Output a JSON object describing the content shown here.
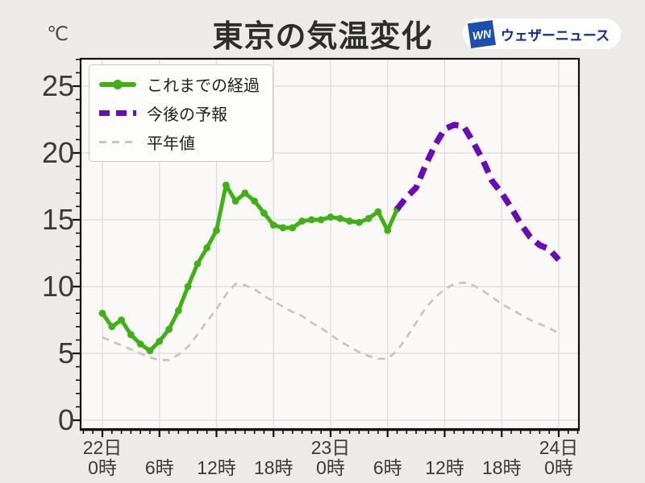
{
  "header": {
    "title": "東京の気温変化",
    "unit_label": "℃"
  },
  "logo": {
    "mark": "WN",
    "text": "ウェザーニュース"
  },
  "colors": {
    "observed_green": "#3eb114",
    "forecast_purple": "#6a0ab8",
    "normal_gray": "#c6c6c6",
    "background": "#edebe8",
    "plot_background": "#faf9f7",
    "grid": "#dcdcdc",
    "axis": "#111111",
    "tick_text": "#3a3a3a",
    "logo_square_blue": "#1d4fb0",
    "logo_text_blue": "#0c2a99"
  },
  "chart_data": {
    "type": "line",
    "title": "東京の気温変化",
    "ylabel": "℃",
    "grid": true,
    "legend_position": "top-left",
    "x_axis": {
      "unit": "hour",
      "range_hours": [
        0,
        48
      ],
      "major_tick_every_hours": 6,
      "minor_tick_every_hours": 1,
      "tick_labels": [
        {
          "hour": 0,
          "day": "22日",
          "time": "0時"
        },
        {
          "hour": 6,
          "time": "6時"
        },
        {
          "hour": 12,
          "time": "12時"
        },
        {
          "hour": 18,
          "time": "18時"
        },
        {
          "hour": 24,
          "day": "23日",
          "time": "0時"
        },
        {
          "hour": 30,
          "time": "6時"
        },
        {
          "hour": 36,
          "time": "12時"
        },
        {
          "hour": 42,
          "time": "18時"
        },
        {
          "hour": 48,
          "day": "24日",
          "time": "0時"
        }
      ]
    },
    "y_axis": {
      "unit": "℃",
      "ticks": [
        0,
        5,
        10,
        15,
        20,
        25
      ],
      "minor_step": 1,
      "ylim": [
        -0.7,
        27
      ]
    },
    "series": [
      {
        "name": "これまでの経過",
        "role": "observed",
        "color": "#3eb114",
        "line_style": "solid",
        "markers": true,
        "start_hour": 0,
        "step_hours": 1,
        "values": [
          8.0,
          7.0,
          7.5,
          6.4,
          5.7,
          5.2,
          5.9,
          6.8,
          8.2,
          10.0,
          11.7,
          12.9,
          14.2,
          17.6,
          16.4,
          17.0,
          16.4,
          15.5,
          14.6,
          14.4,
          14.4,
          14.9,
          15.0,
          15.0,
          15.2,
          15.1,
          14.9,
          14.8,
          15.1,
          15.6,
          14.2,
          15.8
        ]
      },
      {
        "name": "今後の予報",
        "role": "forecast",
        "color": "#6a0ab8",
        "line_style": "dashed-thick",
        "markers": false,
        "start_hour": 31,
        "step_hours": 1,
        "values": [
          15.8,
          16.7,
          17.4,
          19.1,
          20.6,
          21.8,
          22.1,
          22.0,
          20.8,
          19.5,
          17.9,
          17.0,
          15.9,
          14.7,
          13.7,
          13.1,
          12.8,
          12.0
        ]
      },
      {
        "name": "平年値",
        "role": "normal",
        "color": "#c6c6c6",
        "line_style": "dashed-thin",
        "markers": false,
        "start_hour": 0,
        "step_hours": 1,
        "values": [
          6.2,
          5.9,
          5.6,
          5.3,
          5.0,
          4.7,
          4.5,
          4.5,
          4.9,
          5.5,
          6.4,
          7.4,
          8.3,
          9.4,
          10.2,
          10.1,
          9.8,
          9.3,
          8.9,
          8.5,
          8.1,
          7.8,
          7.3,
          6.9,
          6.4,
          5.9,
          5.5,
          5.1,
          4.8,
          4.6,
          4.6,
          5.2,
          6.2,
          7.3,
          8.4,
          9.2,
          9.8,
          10.2,
          10.3,
          10.1,
          9.7,
          9.2,
          8.7,
          8.3,
          7.9,
          7.5,
          7.2,
          6.9,
          6.5
        ]
      }
    ]
  }
}
